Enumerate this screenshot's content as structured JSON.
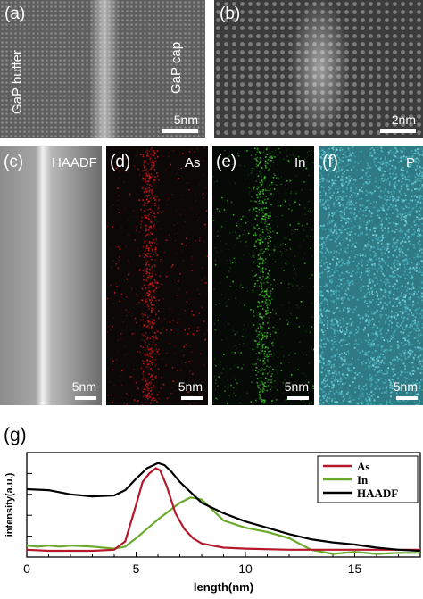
{
  "panels": {
    "a": {
      "label": "(a)",
      "left_text": "GaP buffer",
      "right_text": "GaP cap",
      "scalebar": "5nm"
    },
    "b": {
      "label": "(b)",
      "scalebar": "2nm"
    },
    "c": {
      "label": "(c)",
      "channel": "HAADF",
      "scalebar": "5nm"
    },
    "d": {
      "label": "(d)",
      "channel": "As",
      "scalebar": "5nm"
    },
    "e": {
      "label": "(e)",
      "channel": "In",
      "scalebar": "5nm"
    },
    "f": {
      "label": "(f)",
      "channel": "P",
      "scalebar": "5nm"
    },
    "g": {
      "label": "(g)"
    }
  },
  "colors": {
    "as_map": "#d01818",
    "in_map": "#3fbf2a",
    "p_map": "#49b8c4",
    "as_line": "#b4182a",
    "in_line": "#6aaa2a",
    "haadf_line": "#000000"
  },
  "chart_data": {
    "type": "line",
    "xlabel": "length(nm)",
    "ylabel": "intensity(a.u.)",
    "xlim": [
      0,
      18
    ],
    "xticks": [
      "0",
      "5",
      "10",
      "15"
    ],
    "ylim": [
      0,
      1
    ],
    "legend_position": "top-right",
    "series": [
      {
        "name": "As",
        "color": "#b4182a",
        "x": [
          0,
          1,
          2,
          3,
          4,
          4.5,
          5,
          5.3,
          5.6,
          5.9,
          6.1,
          6.4,
          6.8,
          7.2,
          7.6,
          8,
          9,
          10,
          12,
          14,
          16,
          18
        ],
        "y": [
          0.07,
          0.06,
          0.06,
          0.06,
          0.07,
          0.15,
          0.5,
          0.72,
          0.8,
          0.85,
          0.83,
          0.68,
          0.42,
          0.27,
          0.18,
          0.13,
          0.09,
          0.08,
          0.07,
          0.07,
          0.07,
          0.07
        ]
      },
      {
        "name": "In",
        "color": "#6aaa2a",
        "x": [
          0,
          0.5,
          1,
          1.5,
          2,
          3,
          4,
          4.5,
          5,
          6,
          6.5,
          7,
          7.5,
          8,
          8.5,
          9,
          10,
          11,
          12,
          13,
          14,
          15,
          16,
          17,
          18
        ],
        "y": [
          0.11,
          0.1,
          0.11,
          0.1,
          0.11,
          0.1,
          0.08,
          0.1,
          0.18,
          0.36,
          0.44,
          0.52,
          0.57,
          0.55,
          0.45,
          0.35,
          0.28,
          0.24,
          0.18,
          0.07,
          0.03,
          0.05,
          0.03,
          0.04,
          0.04
        ]
      },
      {
        "name": "HAADF",
        "color": "#000000",
        "x": [
          0,
          1,
          2,
          3,
          4,
          4.5,
          5,
          5.5,
          6,
          6.3,
          6.6,
          7,
          8,
          9,
          10,
          11,
          12,
          13,
          14,
          15,
          16,
          17,
          18
        ],
        "y": [
          0.65,
          0.64,
          0.6,
          0.58,
          0.59,
          0.64,
          0.75,
          0.85,
          0.9,
          0.88,
          0.82,
          0.72,
          0.52,
          0.42,
          0.34,
          0.28,
          0.22,
          0.17,
          0.14,
          0.12,
          0.09,
          0.07,
          0.06
        ]
      }
    ]
  }
}
